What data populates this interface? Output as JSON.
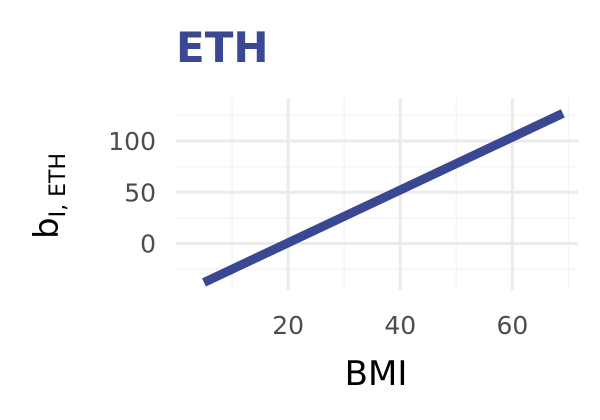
{
  "chart_data": {
    "type": "line",
    "title": "ETH",
    "xlabel": "BMI",
    "ylabel": {
      "main": "b",
      "subscript": "I, ETH"
    },
    "xlim": [
      0,
      71.7
    ],
    "ylim": [
      -45.4,
      142
    ],
    "x_ticks": [
      20,
      40,
      60
    ],
    "y_ticks": [
      0,
      50,
      100
    ],
    "grid": true,
    "series": [
      {
        "x": [
          5,
          69
        ],
        "values": [
          -38,
          127
        ]
      }
    ],
    "colors": {
      "line": "#3a4792",
      "title": "#3a4792",
      "grid_major": "#ebebeb",
      "grid_minor": "#f4f4f4"
    }
  }
}
